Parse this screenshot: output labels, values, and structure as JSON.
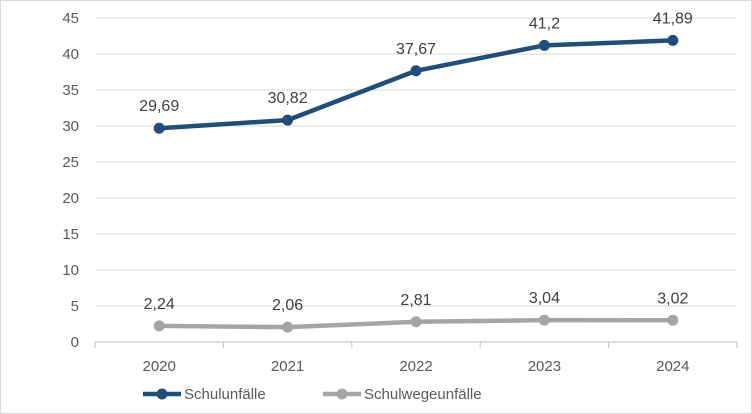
{
  "chart_data": {
    "type": "line",
    "title": "",
    "xlabel": "",
    "ylabel": "",
    "categories": [
      "2020",
      "2021",
      "2022",
      "2023",
      "2024"
    ],
    "ylim": [
      0,
      45
    ],
    "yticks": [
      0,
      5,
      10,
      15,
      20,
      25,
      30,
      35,
      40,
      45
    ],
    "grid": true,
    "legend_position": "bottom-left",
    "series": [
      {
        "name": "Schulunfälle",
        "values": [
          29.69,
          30.82,
          37.67,
          41.2,
          41.89
        ],
        "labels": [
          "29,69",
          "30,82",
          "37,67",
          "41,2",
          "41,89"
        ],
        "color": "#1f4e79"
      },
      {
        "name": "Schulwegeunfälle",
        "values": [
          2.24,
          2.06,
          2.81,
          3.04,
          3.02
        ],
        "labels": [
          "2,24",
          "2,06",
          "2,81",
          "3,04",
          "3,02"
        ],
        "color": "#a5a5a5"
      }
    ]
  }
}
